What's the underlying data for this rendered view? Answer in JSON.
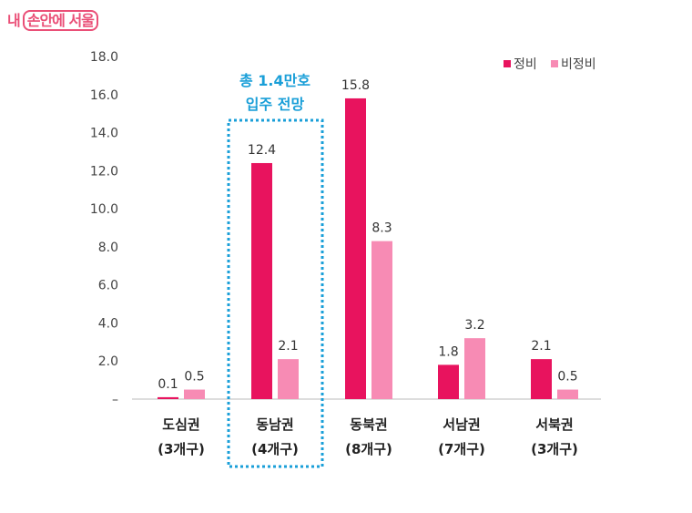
{
  "logo": {
    "prefix": "내",
    "boxed": "손안에 서울"
  },
  "chart_data": {
    "type": "bar",
    "categories": [
      [
        "도심권",
        "(3개구)"
      ],
      [
        "동남권",
        "(4개구)"
      ],
      [
        "동북권",
        "(8개구)"
      ],
      [
        "서남권",
        "(7개구)"
      ],
      [
        "서북권",
        "(3개구)"
      ]
    ],
    "series": [
      {
        "name": "정비",
        "color": "#e8135e",
        "values": [
          0.1,
          12.4,
          15.8,
          1.8,
          2.1
        ],
        "labels": [
          "0.1",
          "12.4",
          "15.8",
          "1.8",
          "2.1"
        ]
      },
      {
        "name": "비정비",
        "color": "#f78bb4",
        "values": [
          0.5,
          2.1,
          8.3,
          3.2,
          0.5
        ],
        "labels": [
          "0.5",
          "2.1",
          "8.3",
          "3.2",
          "0.5"
        ]
      }
    ],
    "ylim": [
      0,
      18
    ],
    "yticks": [
      {
        "v": 0,
        "label": "–"
      },
      {
        "v": 2,
        "label": "2.0"
      },
      {
        "v": 4,
        "label": "4.0"
      },
      {
        "v": 6,
        "label": "6.0"
      },
      {
        "v": 8,
        "label": "8.0"
      },
      {
        "v": 10,
        "label": "10.0"
      },
      {
        "v": 12,
        "label": "12.0"
      },
      {
        "v": 14,
        "label": "14.0"
      },
      {
        "v": 16,
        "label": "16.0"
      },
      {
        "v": 18,
        "label": "18.0"
      }
    ],
    "legend_position": "top-right",
    "grid": false,
    "annotation": {
      "lines": [
        "총 1.4만호",
        "입주 전망"
      ],
      "color": "#1a9fd8",
      "highlight_category": "동남권"
    }
  }
}
